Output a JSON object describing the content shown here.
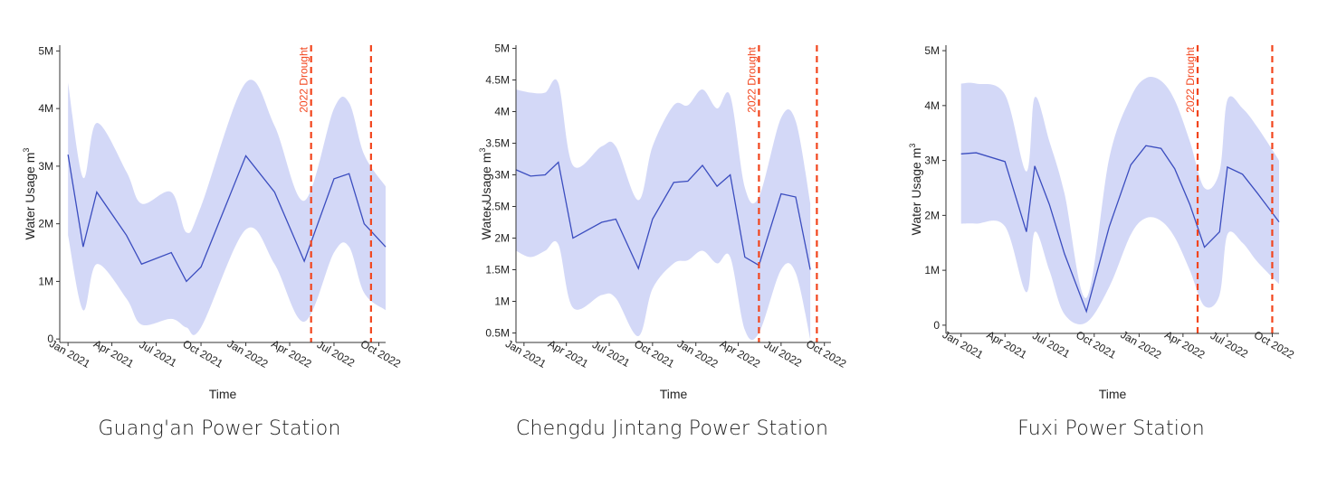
{
  "colors": {
    "line": "#3b4dbf",
    "band": "#d3d8f7",
    "drought": "#f2451d",
    "axis": "#333333"
  },
  "chart_data": [
    {
      "type": "line",
      "title": "Guang'an Power Station",
      "xlabel": "Time",
      "ylabel": "Water Usage m",
      "ylabel_sup": "3",
      "x_range": [
        "2020-12-15",
        "2022-10-15"
      ],
      "y_range": [
        -0.06,
        5.1
      ],
      "y_ticks": [
        0,
        1,
        2,
        3,
        4,
        5
      ],
      "y_tick_labels": [
        "0",
        "1M",
        "2M",
        "3M",
        "4M",
        "5M"
      ],
      "x_ticks": [
        "2021-01-01",
        "2021-04-01",
        "2021-07-01",
        "2021-10-01",
        "2022-01-01",
        "2022-04-01",
        "2022-07-01",
        "2022-10-01"
      ],
      "x_tick_labels": [
        "Jan 2021",
        "Apr 2021",
        "Jul 2021",
        "Oct 2021",
        "Jan 2022",
        "Apr 2022",
        "Jul 2022",
        "Oct 2022"
      ],
      "series": [
        {
          "x": [
            "2021-01-01",
            "2021-02-01",
            "2021-03-01",
            "2021-05-01",
            "2021-06-01",
            "2021-08-01",
            "2021-09-01",
            "2021-10-01",
            "2022-01-01",
            "2022-03-01",
            "2022-05-01",
            "2022-07-01",
            "2022-08-01",
            "2022-09-01",
            "2022-10-15"
          ],
          "y": [
            3.2,
            1.6,
            2.55,
            1.8,
            1.3,
            1.5,
            1.0,
            1.25,
            3.18,
            2.55,
            1.35,
            2.78,
            2.87,
            2.0,
            1.6
          ],
          "lower": [
            1.8,
            0.5,
            1.3,
            0.7,
            0.25,
            0.35,
            0.2,
            0.2,
            1.9,
            1.3,
            0.3,
            1.5,
            1.6,
            0.8,
            0.5
          ],
          "upper": [
            4.45,
            2.8,
            3.75,
            2.9,
            2.35,
            2.55,
            1.85,
            2.3,
            4.45,
            3.7,
            2.4,
            4.0,
            4.1,
            3.2,
            2.65
          ]
        }
      ],
      "vlines": [
        "2022-05-15",
        "2022-09-15"
      ],
      "annotation": "2022 Drought"
    },
    {
      "type": "line",
      "title": "Chengdu Jintang Power Station",
      "xlabel": "Time",
      "ylabel": "Water Usage m",
      "ylabel_sup": "3",
      "x_range": [
        "2020-12-15",
        "2022-10-15"
      ],
      "y_range": [
        0.35,
        5.05
      ],
      "y_ticks": [
        0.5,
        1,
        1.5,
        2,
        2.5,
        3,
        3.5,
        4,
        4.5,
        5
      ],
      "y_tick_labels": [
        "0.5M",
        "1M",
        "1.5M",
        "2M",
        "2.5M",
        "3M",
        "3.5M",
        "4M",
        "4.5M",
        "5M"
      ],
      "x_ticks": [
        "2021-01-01",
        "2021-04-01",
        "2021-07-01",
        "2021-10-01",
        "2022-01-01",
        "2022-04-01",
        "2022-07-01",
        "2022-10-01"
      ],
      "x_tick_labels": [
        "Jan 2021",
        "Apr 2021",
        "Jul 2021",
        "Oct 2021",
        "Jan 2022",
        "Apr 2022",
        "Jul 2022",
        "Oct 2022"
      ],
      "series": [
        {
          "x": [
            "2020-12-15",
            "2021-01-15",
            "2021-02-15",
            "2021-03-15",
            "2021-04-15",
            "2021-06-15",
            "2021-07-15",
            "2021-09-01",
            "2021-10-01",
            "2021-11-15",
            "2021-12-15",
            "2022-01-15",
            "2022-02-15",
            "2022-03-15",
            "2022-04-15",
            "2022-05-15",
            "2022-07-01",
            "2022-08-01",
            "2022-09-01"
          ],
          "y": [
            3.08,
            2.98,
            3.0,
            3.2,
            2.0,
            2.25,
            2.3,
            1.52,
            2.3,
            2.88,
            2.9,
            3.15,
            2.82,
            3.0,
            1.7,
            1.57,
            2.7,
            2.65,
            1.5
          ],
          "lower": [
            1.8,
            1.7,
            1.8,
            1.9,
            0.9,
            1.1,
            1.05,
            0.45,
            1.2,
            1.6,
            1.65,
            1.8,
            1.6,
            1.7,
            0.55,
            0.5,
            1.5,
            1.45,
            0.4
          ],
          "upper": [
            4.35,
            4.3,
            4.3,
            4.45,
            3.15,
            3.45,
            3.45,
            2.6,
            3.45,
            4.1,
            4.1,
            4.35,
            4.05,
            4.25,
            2.8,
            2.65,
            3.9,
            3.85,
            2.55
          ]
        }
      ],
      "vlines": [
        "2022-05-15",
        "2022-09-15"
      ],
      "annotation": "2022 Drought"
    },
    {
      "type": "line",
      "title": "Fuxi Power Station",
      "xlabel": "Time",
      "ylabel": "Water Usage m",
      "ylabel_sup": "3",
      "x_range": [
        "2020-12-01",
        "2022-10-15"
      ],
      "y_range": [
        -0.15,
        5.1
      ],
      "y_ticks": [
        0,
        1,
        2,
        3,
        4,
        5
      ],
      "y_tick_labels": [
        "0",
        "1M",
        "2M",
        "3M",
        "4M",
        "5M"
      ],
      "x_ticks": [
        "2021-01-01",
        "2021-04-01",
        "2021-07-01",
        "2021-10-01",
        "2022-01-01",
        "2022-04-01",
        "2022-07-01",
        "2022-10-01"
      ],
      "x_tick_labels": [
        "Jan 2021",
        "Apr 2021",
        "Jul 2021",
        "Oct 2021",
        "Jan 2022",
        "Apr 2022",
        "Jul 2022",
        "Oct 2022"
      ],
      "series": [
        {
          "x": [
            "2021-01-01",
            "2021-02-01",
            "2021-04-01",
            "2021-05-15",
            "2021-06-01",
            "2021-07-01",
            "2021-08-01",
            "2021-09-15",
            "2021-11-01",
            "2021-12-15",
            "2022-01-15",
            "2022-02-15",
            "2022-03-15",
            "2022-04-15",
            "2022-05-15",
            "2022-06-15",
            "2022-07-01",
            "2022-08-01",
            "2022-09-01",
            "2022-10-15"
          ],
          "y": [
            3.12,
            3.14,
            2.98,
            1.7,
            2.9,
            2.2,
            1.3,
            0.25,
            1.8,
            2.92,
            3.27,
            3.22,
            2.85,
            2.2,
            1.42,
            1.7,
            2.88,
            2.75,
            2.4,
            1.88
          ],
          "lower": [
            1.85,
            1.85,
            1.8,
            0.6,
            1.7,
            1.0,
            0.2,
            0.05,
            0.7,
            1.65,
            1.95,
            1.9,
            1.6,
            1.0,
            0.35,
            0.55,
            1.65,
            1.5,
            1.15,
            0.75
          ],
          "upper": [
            4.4,
            4.4,
            4.2,
            2.8,
            4.15,
            3.35,
            2.4,
            0.5,
            3.05,
            4.15,
            4.5,
            4.45,
            4.1,
            3.35,
            2.5,
            2.8,
            4.1,
            3.95,
            3.6,
            3.0
          ]
        }
      ],
      "vlines": [
        "2022-05-01",
        "2022-10-01"
      ],
      "annotation": "2022 Drought"
    }
  ]
}
